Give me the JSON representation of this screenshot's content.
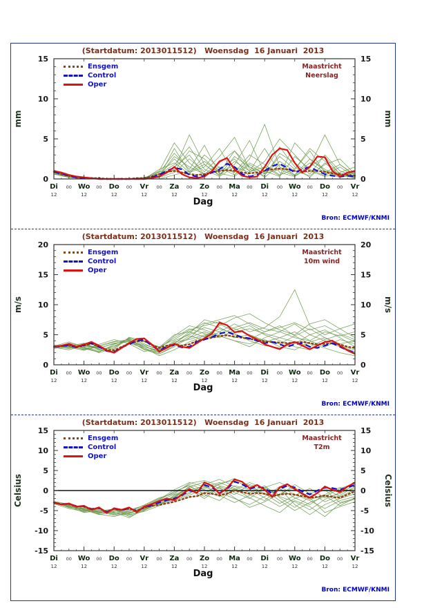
{
  "bron": "Bron: ECMWF/KNMI",
  "legend": [
    "Ensgem",
    "Control",
    "Oper"
  ],
  "x_axis": {
    "label": "Dag",
    "days": [
      "Di",
      "Wo",
      "Do",
      "Vr",
      "Za",
      "Zo",
      "Ma",
      "Di",
      "Wo",
      "Do",
      "Vr"
    ],
    "hour_major": "12",
    "hour_minor": "00",
    "total_hours": 240
  },
  "colors": {
    "member": "#6e9a50",
    "oper": "#dd1111",
    "control": "#1111cc",
    "ensgem": "#8b4513",
    "frame": "#2233aa",
    "title": "#7a2f1a",
    "location": "#8b2222",
    "bron": "#0000cc",
    "axis": "#333333"
  },
  "chart_data": [
    {
      "type": "line",
      "title": "(Startdatum: 2013011512)   Woensdag  16 Januari  2013",
      "location": "Maastricht",
      "variable": "Neerslag",
      "ylabel": "mm",
      "ylim": [
        0,
        15
      ],
      "yticks": [
        0,
        5,
        10,
        15
      ],
      "zero_line": false,
      "series": {
        "oper": [
          1.0,
          0.8,
          0.5,
          0.3,
          0.2,
          0.1,
          0,
          0,
          0,
          0,
          0,
          0,
          0,
          0.1,
          0.3,
          0.8,
          1.5,
          0.6,
          0.2,
          0.1,
          0.3,
          1.0,
          2.2,
          2.6,
          1.2,
          0.4,
          0.2,
          0.3,
          1.5,
          3.0,
          3.8,
          3.6,
          2.0,
          0.8,
          1.5,
          2.8,
          2.7,
          1.0,
          0.3,
          0.8,
          1.0
        ],
        "control": [
          0.9,
          0.7,
          0.4,
          0.2,
          0.1,
          0.1,
          0,
          0,
          0,
          0,
          0,
          0,
          0,
          0.2,
          0.5,
          1.0,
          1.4,
          1.2,
          0.5,
          0.3,
          0.4,
          0.8,
          1.2,
          1.9,
          1.5,
          0.6,
          0.3,
          0.5,
          1.0,
          1.6,
          1.9,
          1.4,
          0.8,
          1.2,
          1.5,
          1.0,
          0.6,
          0.4,
          0.3,
          0.4,
          0.3
        ],
        "ensgem": [
          0.9,
          0.6,
          0.4,
          0.2,
          0.1,
          0.1,
          0.1,
          0,
          0,
          0,
          0,
          0.1,
          0.1,
          0.3,
          0.6,
          0.9,
          1.0,
          0.8,
          0.6,
          0.5,
          0.6,
          0.8,
          1.0,
          1.1,
          1.0,
          0.8,
          0.7,
          0.8,
          1.0,
          1.2,
          1.3,
          1.2,
          1.0,
          0.9,
          1.0,
          1.0,
          0.9,
          0.7,
          0.6,
          0.5,
          0.4
        ]
      },
      "members": [
        [
          0.8,
          0.3,
          0,
          0,
          0,
          0,
          0,
          0.2,
          1.5,
          3.0,
          0.5,
          1.2,
          2.5,
          0.3,
          1.0,
          4.0,
          1.5,
          0.2,
          2.0,
          0.5,
          0.1
        ],
        [
          1.0,
          0.4,
          0.1,
          0,
          0,
          0,
          0,
          0,
          0.5,
          1.0,
          2.2,
          0.8,
          3.5,
          1.5,
          0.2,
          1.8,
          0.5,
          2.5,
          1.0,
          0.3,
          0.8
        ],
        [
          0.6,
          0.2,
          0,
          0,
          0,
          0,
          0,
          0.5,
          2.5,
          0.8,
          1.5,
          3.8,
          0.5,
          2.0,
          1.0,
          0.3,
          2.8,
          1.2,
          0.4,
          1.5,
          0.2
        ],
        [
          0.9,
          0.3,
          0,
          0,
          0,
          0,
          0.1,
          1.0,
          4.5,
          2.0,
          0.5,
          1.5,
          0.8,
          3.0,
          1.8,
          0.5,
          1.2,
          3.5,
          0.8,
          0.2,
          0.5
        ],
        [
          0.7,
          0.2,
          0,
          0,
          0,
          0,
          0,
          0.3,
          1.2,
          5.5,
          1.8,
          0.4,
          2.2,
          1.0,
          3.8,
          0.8,
          0.3,
          1.5,
          2.8,
          0.6,
          0.2
        ],
        [
          1.1,
          0.5,
          0.1,
          0,
          0,
          0,
          0,
          0.8,
          3.2,
          1.2,
          4.2,
          0.6,
          1.8,
          4.8,
          0.7,
          2.2,
          1.0,
          0.4,
          1.8,
          2.5,
          0.6
        ],
        [
          0.8,
          0.3,
          0,
          0,
          0,
          0,
          0,
          0.2,
          0.8,
          2.5,
          0.9,
          2.8,
          5.2,
          1.2,
          0.4,
          3.2,
          2.0,
          0.6,
          3.0,
          1.0,
          0.3
        ],
        [
          0.6,
          0.2,
          0,
          0,
          0,
          0,
          0,
          1.2,
          2.0,
          0.6,
          3.0,
          1.4,
          0.5,
          2.5,
          6.8,
          1.5,
          0.5,
          2.0,
          0.8,
          1.8,
          0.4
        ],
        [
          0.9,
          0.4,
          0,
          0,
          0,
          0,
          0.2,
          0.6,
          1.8,
          4.0,
          1.2,
          0.3,
          1.5,
          0.8,
          2.2,
          5.0,
          3.0,
          1.0,
          0.3,
          0.8,
          1.5
        ],
        [
          0.7,
          0.3,
          0,
          0,
          0,
          0,
          0,
          0.4,
          2.8,
          1.5,
          0.6,
          2.0,
          3.5,
          0.9,
          1.5,
          0.4,
          4.5,
          2.5,
          1.2,
          0.4,
          0.9
        ],
        [
          1.0,
          0.4,
          0.1,
          0,
          0,
          0,
          0,
          0.9,
          1.0,
          3.5,
          2.5,
          0.7,
          0.3,
          1.8,
          0.6,
          2.8,
          1.2,
          3.8,
          2.2,
          0.7,
          0.2
        ],
        [
          0.8,
          0.2,
          0,
          0,
          0,
          0,
          0,
          0.3,
          3.8,
          0.9,
          1.8,
          0.5,
          2.8,
          1.5,
          0.7,
          1.2,
          0.4,
          1.6,
          5.5,
          1.8,
          0.5
        ]
      ]
    },
    {
      "type": "line",
      "title": "(Startdatum: 2013011512)   Woensdag  16 Januari  2013",
      "location": "Maastricht",
      "variable": "10m wind",
      "ylabel": "m/s",
      "ylim": [
        0,
        20
      ],
      "yticks": [
        0,
        5,
        10,
        15,
        20
      ],
      "zero_line": false,
      "series": {
        "oper": [
          3.0,
          3.2,
          3.5,
          3.0,
          3.4,
          3.8,
          3.2,
          2.4,
          2.0,
          2.8,
          3.6,
          4.3,
          4.4,
          3.4,
          2.2,
          2.8,
          3.5,
          3.0,
          2.8,
          3.6,
          4.4,
          5.2,
          7.0,
          6.6,
          5.4,
          5.6,
          4.8,
          4.2,
          3.4,
          3.0,
          2.6,
          3.4,
          3.8,
          3.2,
          2.6,
          3.2,
          3.8,
          4.0,
          3.2,
          2.4,
          1.8
        ],
        "control": [
          3.0,
          3.1,
          3.3,
          2.9,
          3.3,
          3.6,
          3.0,
          2.3,
          2.1,
          2.9,
          3.4,
          4.0,
          4.2,
          3.2,
          2.4,
          3.0,
          3.3,
          2.9,
          3.0,
          3.8,
          4.2,
          4.6,
          5.2,
          5.5,
          5.0,
          4.6,
          4.4,
          4.0,
          3.6,
          3.8,
          3.4,
          3.0,
          3.4,
          3.6,
          3.0,
          2.8,
          3.2,
          3.6,
          3.0,
          2.4,
          2.0
        ],
        "ensgem": [
          3.0,
          3.1,
          3.2,
          2.9,
          3.2,
          3.5,
          3.0,
          2.5,
          2.4,
          3.0,
          3.5,
          3.9,
          4.0,
          3.3,
          2.8,
          3.2,
          3.4,
          3.2,
          3.4,
          4.0,
          4.3,
          4.5,
          4.8,
          4.9,
          4.7,
          4.5,
          4.3,
          4.1,
          3.9,
          3.8,
          3.7,
          3.6,
          3.7,
          3.8,
          3.6,
          3.4,
          3.5,
          3.6,
          3.4,
          3.0,
          2.8
        ]
      },
      "members": [
        [
          3.0,
          3.5,
          2.8,
          2.2,
          3.2,
          4.0,
          2.5,
          1.8,
          3.0,
          4.5,
          5.5,
          4.8,
          4.0,
          3.5,
          4.2,
          3.0,
          2.5,
          3.8,
          4.5,
          3.2,
          2.0
        ],
        [
          3.2,
          2.8,
          3.5,
          2.5,
          2.0,
          3.8,
          3.0,
          2.2,
          4.0,
          5.0,
          6.2,
          5.5,
          4.5,
          5.0,
          3.8,
          4.5,
          5.5,
          4.0,
          3.0,
          4.2,
          3.5
        ],
        [
          2.8,
          3.2,
          2.5,
          3.0,
          3.8,
          4.2,
          2.8,
          1.5,
          2.5,
          3.8,
          4.8,
          6.0,
          5.2,
          4.0,
          3.2,
          2.8,
          3.5,
          5.0,
          5.8,
          4.5,
          3.0
        ],
        [
          3.1,
          3.8,
          3.0,
          2.0,
          2.8,
          4.5,
          3.5,
          2.5,
          3.5,
          5.5,
          7.0,
          6.2,
          5.0,
          4.2,
          5.5,
          6.5,
          4.8,
          3.5,
          2.8,
          2.0,
          1.5
        ],
        [
          2.9,
          2.5,
          3.2,
          2.8,
          3.5,
          4.0,
          3.2,
          2.0,
          3.8,
          4.2,
          5.0,
          4.5,
          5.8,
          6.5,
          5.0,
          4.0,
          3.0,
          2.5,
          3.8,
          3.0,
          2.2
        ],
        [
          3.3,
          3.0,
          2.6,
          3.4,
          4.2,
          3.5,
          2.2,
          2.8,
          4.5,
          6.0,
          5.2,
          4.8,
          4.0,
          3.0,
          4.5,
          5.5,
          6.8,
          5.0,
          4.0,
          3.2,
          2.5
        ],
        [
          3.0,
          3.4,
          2.9,
          2.4,
          3.0,
          4.4,
          3.8,
          3.0,
          4.2,
          5.8,
          6.5,
          7.2,
          6.0,
          5.0,
          4.0,
          3.5,
          4.8,
          6.0,
          4.5,
          3.5,
          4.0
        ],
        [
          2.7,
          3.1,
          3.6,
          2.6,
          2.2,
          3.6,
          2.8,
          1.8,
          3.2,
          4.8,
          4.2,
          5.5,
          6.8,
          5.5,
          6.2,
          8.0,
          12.5,
          6.5,
          5.0,
          6.0,
          4.5
        ],
        [
          3.2,
          2.9,
          2.4,
          3.2,
          3.9,
          4.1,
          3.0,
          2.4,
          3.6,
          5.2,
          7.5,
          6.8,
          5.5,
          6.0,
          5.2,
          4.5,
          3.8,
          3.0,
          4.2,
          5.0,
          3.8
        ],
        [
          3.1,
          3.3,
          2.7,
          2.1,
          3.4,
          4.3,
          3.3,
          2.6,
          4.8,
          6.5,
          5.8,
          5.0,
          6.2,
          7.0,
          6.0,
          5.5,
          4.5,
          4.0,
          5.5,
          4.8,
          5.5
        ],
        [
          2.8,
          3.6,
          3.1,
          2.7,
          3.6,
          3.9,
          2.6,
          2.1,
          3.4,
          4.4,
          6.8,
          7.5,
          8.2,
          6.8,
          5.5,
          6.2,
          7.0,
          5.8,
          6.5,
          5.2,
          4.2
        ],
        [
          3.0,
          2.7,
          3.3,
          2.9,
          2.6,
          4.6,
          4.0,
          2.9,
          5.0,
          5.5,
          4.6,
          6.5,
          7.8,
          8.5,
          7.0,
          5.8,
          5.0,
          6.8,
          7.5,
          6.0,
          6.8
        ]
      ]
    },
    {
      "type": "line",
      "title": "(Startdatum: 2013011512)   Woensdag  16 Januari  2013",
      "location": "Maastricht",
      "variable": "T2m",
      "ylabel": "Celsius",
      "ylim": [
        -15,
        15
      ],
      "yticks": [
        -15,
        -10,
        -5,
        0,
        5,
        10,
        15
      ],
      "zero_line": true,
      "series": {
        "oper": [
          -3.0,
          -3.5,
          -3.2,
          -4.0,
          -3.8,
          -4.8,
          -4.2,
          -5.6,
          -4.4,
          -4.8,
          -4.2,
          -5.4,
          -4.0,
          -3.4,
          -2.6,
          -2.0,
          -2.4,
          -1.0,
          0.4,
          -0.6,
          2.0,
          1.2,
          -0.8,
          0.6,
          2.8,
          2.2,
          0.6,
          1.4,
          0.2,
          -1.6,
          0.8,
          1.6,
          0.4,
          -0.8,
          -1.8,
          -0.6,
          1.0,
          0.2,
          -0.4,
          1.0,
          2.0
        ],
        "control": [
          -3.0,
          -3.4,
          -3.3,
          -3.9,
          -3.9,
          -4.6,
          -4.3,
          -5.4,
          -4.5,
          -4.9,
          -4.4,
          -5.2,
          -4.2,
          -3.6,
          -3.0,
          -2.4,
          -2.0,
          -1.2,
          0.0,
          -0.4,
          1.4,
          0.8,
          -0.6,
          0.4,
          2.2,
          1.6,
          0.4,
          1.0,
          0.6,
          -0.8,
          0.4,
          1.2,
          0.8,
          -0.2,
          -1.0,
          0.0,
          0.8,
          0.6,
          0.2,
          0.8,
          1.4
        ],
        "ensgem": [
          -3.0,
          -3.4,
          -3.4,
          -4.0,
          -4.0,
          -4.7,
          -4.4,
          -5.3,
          -4.6,
          -4.9,
          -4.5,
          -5.0,
          -4.3,
          -3.8,
          -3.6,
          -3.2,
          -2.8,
          -2.2,
          -1.6,
          -1.4,
          -0.6,
          -0.8,
          -1.2,
          -0.8,
          0.0,
          -0.4,
          -0.8,
          -0.6,
          -0.8,
          -1.4,
          -1.0,
          -0.8,
          -1.0,
          -1.4,
          -1.8,
          -1.6,
          -1.2,
          -1.6,
          -1.8,
          -1.0,
          -0.2
        ]
      },
      "members": [
        [
          -3.0,
          -3.8,
          -4.5,
          -5.5,
          -4.8,
          -5.8,
          -4.2,
          -2.5,
          -1.0,
          0.5,
          -1.5,
          1.0,
          -0.5,
          -2.0,
          0.8,
          -1.2,
          1.5,
          -0.8,
          0.5,
          -1.5,
          0.2
        ],
        [
          -2.8,
          -4.2,
          -5.0,
          -4.5,
          -5.5,
          -6.2,
          -4.8,
          -3.0,
          -2.0,
          -0.5,
          0.8,
          2.0,
          0.5,
          -1.0,
          -2.5,
          0.5,
          -1.8,
          -3.5,
          -1.0,
          0.8,
          -0.5
        ],
        [
          -3.2,
          -3.5,
          -4.8,
          -6.0,
          -5.2,
          -4.8,
          -3.8,
          -2.0,
          -0.5,
          1.5,
          0.2,
          -1.5,
          1.2,
          0.3,
          -1.8,
          -4.0,
          -2.0,
          -0.5,
          -2.8,
          -1.2,
          1.0
        ],
        [
          -3.1,
          -4.0,
          -5.5,
          -5.0,
          -6.0,
          -5.5,
          -4.5,
          -3.5,
          -1.5,
          0.8,
          2.2,
          0.5,
          -1.0,
          1.5,
          0.2,
          -2.5,
          -5.0,
          -3.0,
          -1.5,
          0.5,
          1.8
        ],
        [
          -2.9,
          -3.6,
          -4.2,
          -5.8,
          -4.5,
          -6.5,
          -5.0,
          -2.8,
          -1.8,
          1.0,
          -0.8,
          1.8,
          2.5,
          0.8,
          -1.0,
          0.5,
          -3.5,
          -6.0,
          -3.5,
          -2.0,
          -0.8
        ],
        [
          -3.3,
          -4.5,
          -5.2,
          -4.8,
          -5.8,
          -5.0,
          -4.0,
          -2.2,
          0.2,
          2.0,
          1.0,
          -0.5,
          -2.0,
          -3.5,
          -1.5,
          1.0,
          -1.0,
          -2.5,
          -4.5,
          -2.5,
          -1.5
        ],
        [
          -3.0,
          -3.9,
          -4.6,
          -5.2,
          -6.2,
          -5.8,
          -4.4,
          -3.2,
          -2.2,
          -0.8,
          1.5,
          2.8,
          1.0,
          -0.5,
          1.2,
          -1.8,
          -4.2,
          -1.5,
          0.2,
          -3.0,
          -2.0
        ],
        [
          -2.7,
          -3.4,
          -4.9,
          -5.6,
          -5.0,
          -6.0,
          -5.2,
          -3.8,
          -1.2,
          0.2,
          -2.0,
          0.8,
          -1.8,
          -4.2,
          -2.8,
          -0.8,
          0.8,
          -1.8,
          -5.5,
          -4.0,
          -2.8
        ],
        [
          -3.2,
          -4.1,
          -4.4,
          -5.4,
          -5.6,
          -5.2,
          -3.6,
          -1.8,
          -0.8,
          1.8,
          2.5,
          1.2,
          0.2,
          2.0,
          0.5,
          -1.5,
          -2.8,
          -4.8,
          -2.2,
          -0.5,
          0.5
        ],
        [
          -3.1,
          -3.7,
          -5.1,
          -4.6,
          -5.4,
          -6.8,
          -4.6,
          -2.6,
          -1.6,
          0.0,
          1.2,
          -1.2,
          -3.0,
          -1.2,
          0.8,
          2.0,
          0.2,
          -2.2,
          -1.2,
          -3.8,
          -1.8
        ],
        [
          -2.8,
          -4.3,
          -4.7,
          -5.9,
          -6.5,
          -5.4,
          -4.9,
          -3.4,
          -2.4,
          -1.2,
          0.5,
          1.5,
          3.0,
          1.2,
          -0.8,
          -3.2,
          -1.2,
          0.5,
          -1.8,
          -0.8,
          1.5
        ],
        [
          -3.4,
          -3.3,
          -5.4,
          -5.1,
          -4.6,
          -5.6,
          -4.1,
          -2.4,
          -0.2,
          1.2,
          -1.0,
          -2.5,
          0.5,
          -1.8,
          -3.8,
          -5.5,
          -2.5,
          -4.0,
          -6.5,
          -3.2,
          -2.2
        ]
      ]
    }
  ]
}
